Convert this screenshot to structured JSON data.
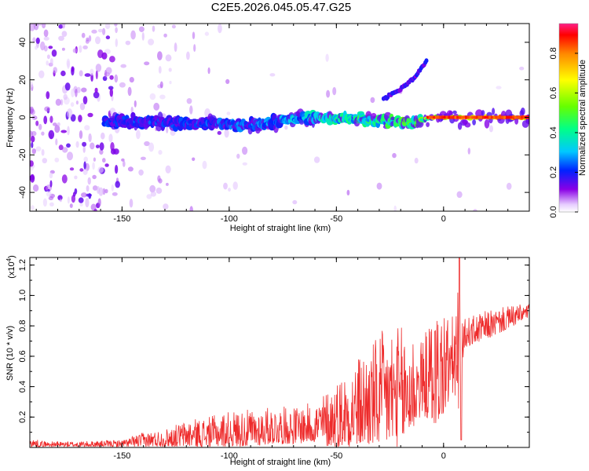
{
  "figure": {
    "title": "C2E5.2026.045.05.47.G25"
  },
  "colors": {
    "snr_line": "#ee2b2b",
    "background": "#ffffff",
    "axis": "#000000"
  },
  "chart_data": [
    {
      "type": "heatmap",
      "title": "C2E5.2026.045.05.47.G25",
      "xlabel": "Height of straight line (km)",
      "ylabel": "Frequency (Hz)",
      "xlim": [
        -193,
        40
      ],
      "ylim": [
        -50,
        50
      ],
      "xticks": [
        -150,
        -100,
        -50,
        0
      ],
      "xtick_labels": [
        "-150",
        "-100",
        "-50",
        "0"
      ],
      "yticks": [
        -40,
        -20,
        0,
        20,
        40
      ],
      "ytick_labels": [
        "-40",
        "-20",
        "0",
        "20",
        "40"
      ],
      "colorbar": {
        "label": "Normalized spectral amplitude",
        "range": [
          0,
          0.95
        ],
        "ticks": [
          0.0,
          0.2,
          0.4,
          0.6,
          0.8
        ],
        "tick_labels": [
          "0.0",
          "0.2",
          "0.4",
          "0.6",
          "0.8"
        ],
        "colormap": "rainbow"
      },
      "ridge": {
        "description_points_height_km": [
          -155,
          -120,
          -90,
          -70,
          -50,
          -30,
          -15,
          -5,
          0,
          20,
          40
        ],
        "frequency_hz": [
          -2,
          -3,
          -4,
          -1,
          0,
          -2,
          -3,
          0,
          0,
          0,
          0
        ],
        "amplitude": [
          0.25,
          0.25,
          0.3,
          0.35,
          0.45,
          0.5,
          0.55,
          0.8,
          0.9,
          0.9,
          0.95
        ]
      },
      "secondary_branch": {
        "height_km": [
          -28,
          -20,
          -13,
          -8
        ],
        "frequency_hz": [
          10,
          15,
          22,
          30
        ]
      }
    },
    {
      "type": "line",
      "xlabel": "Height of straight line (km)",
      "ylabel": "SNR (10 * v/v)",
      "y_multiplier_label": "(x10",
      "y_multiplier_exp": "4",
      "y_multiplier_close": ")",
      "xlim": [
        -193,
        40
      ],
      "ylim": [
        0,
        1.25
      ],
      "xticks": [
        -150,
        -100,
        -50,
        0
      ],
      "xtick_labels": [
        "-150",
        "-100",
        "-50",
        "0"
      ],
      "yticks": [
        0.2,
        0.4,
        0.6,
        0.8,
        1.0,
        1.2
      ],
      "ytick_labels": [
        "0.2",
        "0.4",
        "0.6",
        "0.8",
        "1.0",
        "1.2"
      ],
      "series": [
        {
          "color": "#ee2b2b",
          "envelope_height_km": [
            -193,
            -185,
            -170,
            -150,
            -140,
            -130,
            -120,
            -110,
            -100,
            -90,
            -80,
            -70,
            -60,
            -50,
            -40,
            -30,
            -25,
            -20,
            -15,
            -10,
            -5,
            0,
            5,
            7,
            8,
            10,
            20,
            30,
            40
          ],
          "envelope_baseline": [
            0.02,
            0.02,
            0.015,
            0.02,
            0.04,
            0.05,
            0.08,
            0.09,
            0.11,
            0.12,
            0.14,
            0.14,
            0.16,
            0.2,
            0.25,
            0.3,
            0.35,
            0.38,
            0.42,
            0.45,
            0.5,
            0.55,
            0.6,
            0.6,
            0.62,
            0.75,
            0.8,
            0.85,
            0.9
          ],
          "envelope_peak": [
            0.06,
            0.04,
            0.04,
            0.05,
            0.1,
            0.12,
            0.18,
            0.2,
            0.24,
            0.25,
            0.27,
            0.27,
            0.3,
            0.45,
            0.6,
            0.75,
            0.82,
            0.8,
            0.8,
            0.7,
            0.9,
            0.95,
            0.85,
            1.25,
            0.8,
            0.85,
            0.9,
            0.93,
            0.95
          ]
        }
      ]
    }
  ]
}
